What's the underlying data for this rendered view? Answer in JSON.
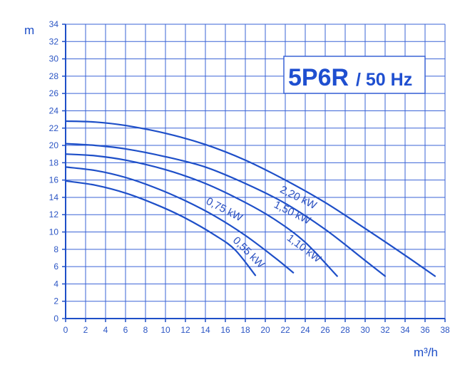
{
  "chart_data": {
    "type": "line",
    "title": "5P6R",
    "subtitle": "/ 50 Hz",
    "xlabel": "m³/h",
    "ylabel": "m",
    "xlim": [
      0,
      38
    ],
    "ylim": [
      0,
      34
    ],
    "x_ticks": [
      0,
      2,
      4,
      6,
      8,
      10,
      12,
      14,
      16,
      18,
      20,
      22,
      24,
      26,
      28,
      30,
      32,
      34,
      36,
      38
    ],
    "y_ticks": [
      0,
      2,
      4,
      6,
      8,
      10,
      12,
      14,
      16,
      18,
      20,
      22,
      24,
      26,
      28,
      30,
      32,
      34
    ],
    "grid": true,
    "colors": {
      "line": "#1e4fc8",
      "grid": "#3a63d6",
      "text": "#2b55c4"
    },
    "series": [
      {
        "name": "2,20 kW",
        "x": [
          0,
          3,
          6,
          10,
          14,
          18,
          22,
          26,
          30,
          34,
          37
        ],
        "y": [
          22.8,
          22.7,
          22.3,
          21.4,
          20.1,
          18.3,
          16.0,
          13.4,
          10.4,
          7.3,
          4.9
        ]
      },
      {
        "name": "1,50 kW",
        "x": [
          0,
          3,
          6,
          10,
          14,
          18,
          22,
          26,
          30,
          32
        ],
        "y": [
          20.2,
          20.0,
          19.6,
          18.7,
          17.5,
          15.6,
          13.3,
          10.3,
          6.7,
          4.9
        ]
      },
      {
        "name": "1,10 kW",
        "x": [
          0,
          3,
          6,
          10,
          14,
          18,
          21,
          24,
          27.2
        ],
        "y": [
          19.0,
          18.8,
          18.3,
          17.2,
          15.6,
          13.4,
          11.4,
          8.8,
          4.9
        ]
      },
      {
        "name": "0,75 kW",
        "x": [
          0,
          3,
          6,
          9,
          12,
          15,
          18,
          21,
          22.8
        ],
        "y": [
          17.5,
          17.1,
          16.3,
          15.1,
          13.6,
          11.8,
          9.6,
          7.0,
          5.3
        ]
      },
      {
        "name": "0,55 kW",
        "x": [
          0,
          3,
          6,
          9,
          12,
          15,
          17,
          19
        ],
        "y": [
          15.9,
          15.4,
          14.5,
          13.2,
          11.6,
          9.6,
          7.9,
          5.0
        ]
      }
    ]
  }
}
